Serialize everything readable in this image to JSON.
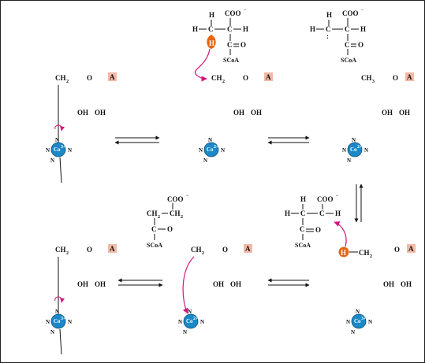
{
  "labels": {
    "adenine": "A",
    "ch2": "CH",
    "ch3": "CH",
    "sub2": "2",
    "sub3": "3",
    "oh": "OH",
    "ring_o": "O",
    "coo": "COO",
    "minus": "−",
    "h": "H",
    "c": "C",
    "o": "O",
    "scoa": "SCoA",
    "eq": "=",
    "dash": "—",
    "co": "Co",
    "co_charge": "3+",
    "co_charge_radical": "2+",
    "n": "N",
    "radical_dots": ":"
  },
  "colors": {
    "outline": "#111111",
    "ring_fill": "#e7e9f2",
    "corrin_fill": "#a9d3ec",
    "cobalt": "#1b89c7",
    "arrow_magenta": "#d4147a",
    "adenine_box": "#f2b9a4",
    "hydrogen_orange": "#e8650f",
    "border": "#222222"
  }
}
